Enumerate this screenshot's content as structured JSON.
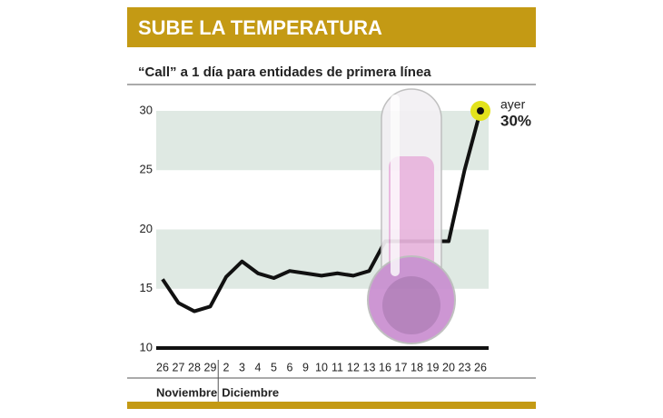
{
  "chart_data": {
    "type": "line",
    "title": "SUBE LA TEMPERATURA",
    "subtitle": "“Call” a 1 día para entidades de primera línea",
    "groups": [
      {
        "name": "Noviembre",
        "categories": [
          "26",
          "27",
          "28",
          "29"
        ]
      },
      {
        "name": "Diciembre",
        "categories": [
          "2",
          "3",
          "4",
          "5",
          "6",
          "9",
          "10",
          "11",
          "12",
          "13",
          "16",
          "17",
          "18",
          "19",
          "20",
          "23",
          "26"
        ]
      }
    ],
    "series": [
      {
        "color": "#111111",
        "values": [
          15.8,
          13.8,
          13.1,
          13.5,
          16.0,
          17.3,
          16.3,
          15.9,
          16.5,
          16.3,
          16.1,
          16.3,
          16.1,
          16.5,
          19,
          19,
          19,
          19,
          19,
          25,
          30
        ],
        "value_labels": [
          null,
          null,
          null,
          null,
          null,
          null,
          null,
          null,
          null,
          null,
          null,
          null,
          null,
          null,
          null,
          null,
          null,
          null,
          null,
          null,
          "30%"
        ]
      }
    ],
    "annotation": "ayer",
    "ylim": [
      10,
      30
    ],
    "yticks": [
      10,
      15,
      20,
      25,
      30
    ],
    "band_color": "#dfe9e3",
    "accent_color": "#c49a14",
    "highlight_color": "#e3e31c"
  }
}
